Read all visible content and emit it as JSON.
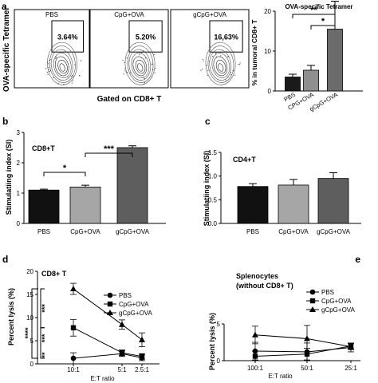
{
  "panel_letters": {
    "a": "a",
    "b": "b",
    "c": "c",
    "d": "d",
    "e": "e"
  },
  "panel_a_flow": {
    "ylabel": "OVA-specific Tetramer",
    "xlabel": "Gated on CD8+ T",
    "plots": [
      {
        "title": "PBS",
        "gate_value": "3.64%"
      },
      {
        "title": "CpG+OVA",
        "gate_value": "5.20%"
      },
      {
        "title": "gCpG+OVA",
        "gate_value": "16,63%"
      }
    ]
  },
  "chart_data": [
    {
      "panel": "a",
      "type": "bar",
      "title": "OVA-specific Tetramer",
      "ylabel": "% in tumoral CD8+ T",
      "categories": [
        "PBS",
        "CPG+OVA",
        "gCpG+OVA"
      ],
      "values": [
        3.5,
        5.2,
        15.5
      ],
      "errors": [
        0.7,
        1.2,
        7.0
      ],
      "ylim": [
        0,
        20
      ],
      "yticks": [
        "0",
        "10",
        "20"
      ],
      "bar_colors": [
        "#1a1a1a",
        "#8f8f8f",
        "#6b6b6b"
      ],
      "significance": [
        {
          "from": 0,
          "to": 2,
          "label": "**"
        },
        {
          "from": 1,
          "to": 2,
          "label": "*"
        }
      ]
    },
    {
      "panel": "b",
      "type": "bar",
      "title": "CD8+T",
      "ylabel": "Stimulatiing index (SI)",
      "categories": [
        "PBS",
        "CpG+OVA",
        "gCpG+OVA"
      ],
      "values": [
        1.1,
        1.2,
        2.5
      ],
      "errors": [
        0.03,
        0.06,
        0.06
      ],
      "ylim": [
        0,
        3
      ],
      "yticks": [
        "0",
        "1",
        "2",
        "3"
      ],
      "bar_colors": [
        "#111111",
        "#a6a6a6",
        "#5e5e5e"
      ],
      "significance": [
        {
          "from": 0,
          "to": 1,
          "label": "*"
        },
        {
          "from": 1,
          "to": 2,
          "label": "***"
        }
      ]
    },
    {
      "panel": "c",
      "type": "bar",
      "title": "CD4+T",
      "ylabel": "Stimulatiing index (SI)",
      "categories": [
        "PBS",
        "CpG+OVA",
        "gCpG+OVA"
      ],
      "values": [
        0.78,
        0.81,
        0.95
      ],
      "errors": [
        0.06,
        0.12,
        0.12
      ],
      "ylim": [
        0,
        1.5
      ],
      "yticks": [
        "0.0",
        "0.5",
        "1.0",
        "1.5"
      ],
      "bar_colors": [
        "#111111",
        "#a6a6a6",
        "#5e5e5e"
      ],
      "significance": []
    },
    {
      "panel": "d",
      "type": "line",
      "title": "CD8+ T",
      "ylabel": "Percent lysis (%)",
      "xlabel": "E:T ratio",
      "categories": [
        "10:1",
        "5:1",
        "2.5:1"
      ],
      "ylim": [
        0,
        20
      ],
      "yticks": [
        "0",
        "5",
        "10",
        "15",
        "20"
      ],
      "series": [
        {
          "name": "PBS",
          "marker": "circle",
          "values": [
            1.2,
            2.2,
            1.3
          ],
          "errors": [
            1.2,
            0.6,
            0.6
          ]
        },
        {
          "name": "CpG+OVA",
          "marker": "square",
          "values": [
            7.8,
            2.4,
            1.6
          ],
          "errors": [
            1.8,
            0.6,
            0.6
          ]
        },
        {
          "name": "gCpG+OVA",
          "marker": "triangle",
          "values": [
            16.2,
            8.5,
            5.2
          ],
          "errors": [
            1.2,
            1.0,
            1.5
          ]
        }
      ],
      "significance_labels": [
        "***",
        "***",
        "****",
        "**"
      ]
    },
    {
      "panel": "e",
      "type": "line",
      "title": "Splenocytes\n(without  CD8+ T)",
      "ylabel": "Percent lysis (%)",
      "xlabel": "E:T ratio",
      "categories": [
        "100:1",
        "50:1",
        "25:1"
      ],
      "ylim": [
        0,
        5
      ],
      "yticks": [
        "0",
        "5"
      ],
      "series": [
        {
          "name": "PBS",
          "marker": "circle",
          "values": [
            1.3,
            1.2,
            1.8
          ],
          "errors": [
            1.2,
            1.2,
            0.6
          ]
        },
        {
          "name": "CpG+OVA",
          "marker": "square",
          "values": [
            0.6,
            0.9,
            2.0
          ],
          "errors": [
            0.7,
            0.8,
            0.4
          ]
        },
        {
          "name": "gCpG+OVA",
          "marker": "triangle",
          "values": [
            3.5,
            3.0,
            1.9
          ],
          "errors": [
            1.2,
            1.8,
            0.4
          ]
        }
      ]
    }
  ]
}
